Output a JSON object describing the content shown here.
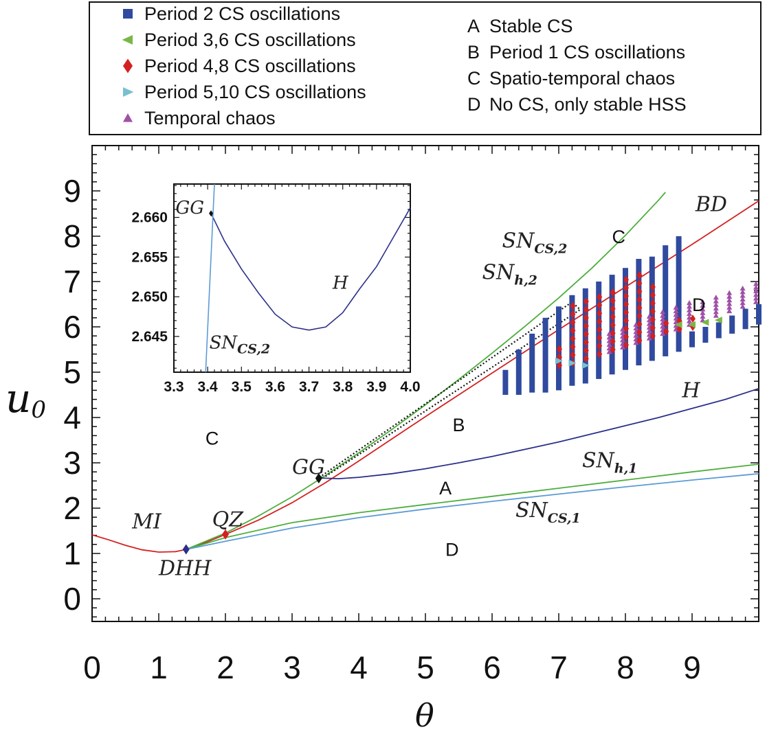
{
  "legend": {
    "markers": [
      {
        "label": "Period 2 CS oscillations",
        "symbol": "square",
        "color": "#2f4a9e"
      },
      {
        "label": "Period 3,6 CS oscillations",
        "symbol": "triangle-left",
        "color": "#7ab648"
      },
      {
        "label": "Period 4,8 CS oscillations",
        "symbol": "diamond",
        "color": "#d42020"
      },
      {
        "label": "Period 5,10 CS oscillations",
        "symbol": "triangle-right",
        "color": "#78c0d0"
      },
      {
        "label": "Temporal chaos",
        "symbol": "triangle-up",
        "color": "#a050a8"
      }
    ],
    "regions": [
      {
        "letter": "A",
        "label": "Stable CS"
      },
      {
        "letter": "B",
        "label": "Period 1 CS oscillations"
      },
      {
        "letter": "C",
        "label": "Spatio-temporal chaos"
      },
      {
        "letter": "D",
        "label": "No CS, only stable HSS"
      }
    ]
  },
  "chart_data": [
    {
      "type": "line",
      "role": "main",
      "xlabel": "θ",
      "ylabel": "u",
      "ylabel_sub": "0",
      "xlim": [
        0,
        10
      ],
      "ylim": [
        -0.5,
        10
      ],
      "xticks": [
        "0",
        "1",
        "2",
        "3",
        "4",
        "5",
        "6",
        "7",
        "8",
        "9"
      ],
      "yticks": [
        "0",
        "1",
        "2",
        "3",
        "4",
        "5",
        "6",
        "7",
        "8",
        "9"
      ],
      "colors": {
        "red": "#d42020",
        "green": "#4cae3c",
        "navy": "#2b2f8a",
        "blue": "#5b9bd5"
      },
      "series": [
        {
          "name": "MI/BD",
          "color": "red",
          "x": [
            0,
            0.25,
            0.5,
            0.75,
            1,
            1.25,
            1.41,
            1.7,
            2,
            2.5,
            3,
            3.5,
            4,
            4.5,
            5,
            5.5,
            6,
            6.5,
            7,
            7.5,
            8,
            8.5,
            9,
            9.5,
            10
          ],
          "y": [
            1.41,
            1.3,
            1.18,
            1.08,
            1.03,
            1.04,
            1.09,
            1.24,
            1.42,
            1.74,
            2.12,
            2.56,
            3.04,
            3.53,
            4.02,
            4.5,
            4.98,
            5.46,
            5.94,
            6.41,
            6.88,
            7.35,
            7.82,
            8.3,
            8.78
          ]
        },
        {
          "name": "SN_h,2",
          "color": "green",
          "x": [
            1.41,
            2,
            2.5,
            3,
            3.5,
            4,
            4.5,
            5,
            5.5,
            6,
            6.5,
            7,
            7.5,
            8,
            8.5,
            8.6
          ],
          "y": [
            1.09,
            1.45,
            1.83,
            2.25,
            2.72,
            3.22,
            3.74,
            4.28,
            4.84,
            5.42,
            6.02,
            6.64,
            7.3,
            8.02,
            8.8,
            8.97
          ]
        },
        {
          "name": "SN_CS,2",
          "color": "green",
          "x": [
            3.4,
            3.45
          ],
          "y": [
            2.66,
            2.7
          ]
        },
        {
          "name": "H",
          "color": "navy",
          "x": [
            3.4,
            3.5,
            3.7,
            4,
            4.5,
            5,
            5.5,
            6,
            6.5,
            7,
            7.5,
            8,
            8.5,
            9,
            9.5,
            10
          ],
          "y": [
            2.67,
            2.66,
            2.65,
            2.68,
            2.76,
            2.87,
            3.0,
            3.14,
            3.3,
            3.46,
            3.64,
            3.82,
            4.0,
            4.2,
            4.4,
            4.64
          ]
        },
        {
          "name": "SN_h,1",
          "color": "green",
          "x": [
            1.41,
            2,
            3,
            4,
            5,
            6,
            7,
            8,
            9,
            10
          ],
          "y": [
            1.09,
            1.35,
            1.68,
            1.9,
            2.08,
            2.26,
            2.44,
            2.62,
            2.8,
            2.97
          ]
        },
        {
          "name": "SN_CS,1",
          "color": "blue",
          "x": [
            1.41,
            2,
            3,
            4,
            5,
            6,
            7,
            8,
            9,
            10
          ],
          "y": [
            1.09,
            1.27,
            1.56,
            1.79,
            1.98,
            2.15,
            2.31,
            2.47,
            2.62,
            2.76
          ]
        }
      ],
      "points": [
        {
          "label": "DHH",
          "x": 1.41,
          "y": 1.09,
          "color": "#2b2f8a"
        },
        {
          "label": "QZ",
          "x": 2.0,
          "y": 1.42,
          "color": "#d42020"
        },
        {
          "label": "GG",
          "x": 3.4,
          "y": 2.66,
          "color": "#111111"
        }
      ],
      "annotations": [
        {
          "text": "MI",
          "x": 0.6,
          "y": 1.55
        },
        {
          "text": "DHH",
          "x": 1.0,
          "y": 0.52
        },
        {
          "text": "QZ",
          "x": 1.8,
          "y": 1.6
        },
        {
          "text": "GG",
          "x": 3.0,
          "y": 2.75
        },
        {
          "text": "BD",
          "x": 9.05,
          "y": 8.55
        },
        {
          "text": "H",
          "x": 8.85,
          "y": 4.45
        },
        {
          "text": "SN",
          "sub": "CS,2",
          "x": 6.15,
          "y": 7.75
        },
        {
          "text": "SN",
          "sub": "h,2",
          "x": 5.85,
          "y": 7.05
        },
        {
          "text": "SN",
          "sub": "h,1",
          "x": 7.35,
          "y": 2.9
        },
        {
          "text": "SN",
          "sub": "CS,1",
          "x": 6.35,
          "y": 1.8
        }
      ],
      "region_labels": [
        {
          "text": "C",
          "x": 1.8,
          "y": 3.4
        },
        {
          "text": "C",
          "x": 7.9,
          "y": 7.85
        },
        {
          "text": "B",
          "x": 5.5,
          "y": 3.7
        },
        {
          "text": "A",
          "x": 5.3,
          "y": 2.3
        },
        {
          "text": "D",
          "x": 5.4,
          "y": 0.95
        },
        {
          "text": "D",
          "x": 9.1,
          "y": 6.35
        }
      ],
      "zoom_box": {
        "corners": [
          [
            3.45,
            2.72
          ],
          [
            7.2,
            6.55
          ],
          [
            7.32,
            6.38
          ],
          [
            3.5,
            2.7
          ]
        ]
      },
      "oscillation_columns": {
        "period2": [
          {
            "x": 6.2,
            "y0": 4.5,
            "y1": 5.05
          },
          {
            "x": 6.4,
            "y0": 4.5,
            "y1": 5.5
          },
          {
            "x": 6.6,
            "y0": 4.55,
            "y1": 5.85
          },
          {
            "x": 6.8,
            "y0": 4.55,
            "y1": 6.2
          },
          {
            "x": 7.0,
            "y0": 4.6,
            "y1": 6.45
          },
          {
            "x": 7.2,
            "y0": 4.7,
            "y1": 6.7
          },
          {
            "x": 7.4,
            "y0": 4.75,
            "y1": 6.85
          },
          {
            "x": 7.6,
            "y0": 4.85,
            "y1": 7.0
          },
          {
            "x": 7.8,
            "y0": 4.95,
            "y1": 7.15
          },
          {
            "x": 8.0,
            "y0": 5.05,
            "y1": 7.3
          },
          {
            "x": 8.2,
            "y0": 5.15,
            "y1": 7.5
          },
          {
            "x": 8.4,
            "y0": 5.25,
            "y1": 7.55
          },
          {
            "x": 8.6,
            "y0": 5.35,
            "y1": 7.8
          },
          {
            "x": 8.8,
            "y0": 5.45,
            "y1": 8.0
          },
          {
            "x": 9.0,
            "y0": 5.55,
            "y1": 5.9
          },
          {
            "x": 9.2,
            "y0": 5.65,
            "y1": 6.0
          },
          {
            "x": 9.4,
            "y0": 5.75,
            "y1": 6.1
          },
          {
            "x": 9.6,
            "y0": 5.85,
            "y1": 6.25
          },
          {
            "x": 9.8,
            "y0": 5.95,
            "y1": 6.4
          },
          {
            "x": 10.0,
            "y0": 6.05,
            "y1": 6.5
          }
        ],
        "period48": [
          {
            "x": 7.0,
            "y0": 5.15,
            "y1": 5.6
          },
          {
            "x": 7.2,
            "y0": 5.2,
            "y1": 6.5
          },
          {
            "x": 7.4,
            "y0": 5.3,
            "y1": 6.6
          },
          {
            "x": 7.6,
            "y0": 5.4,
            "y1": 6.75
          },
          {
            "x": 7.8,
            "y0": 5.5,
            "y1": 6.9
          },
          {
            "x": 8.0,
            "y0": 5.6,
            "y1": 7.05
          },
          {
            "x": 8.2,
            "y0": 5.7,
            "y1": 7.2
          },
          {
            "x": 8.4,
            "y0": 5.8,
            "y1": 6.95
          },
          {
            "x": 8.6,
            "y0": 5.9,
            "y1": 6.1
          },
          {
            "x": 8.8,
            "y0": 5.95,
            "y1": 6.2
          },
          {
            "x": 9.0,
            "y0": 6.0,
            "y1": 6.3
          }
        ],
        "chaos": [
          {
            "x": 7.8,
            "y0": 5.45,
            "y1": 5.85
          },
          {
            "x": 8.0,
            "y0": 5.55,
            "y1": 6.0
          },
          {
            "x": 8.2,
            "y0": 5.65,
            "y1": 6.1
          },
          {
            "x": 8.4,
            "y0": 5.75,
            "y1": 6.25
          },
          {
            "x": 8.6,
            "y0": 5.85,
            "y1": 6.4
          },
          {
            "x": 8.8,
            "y0": 5.95,
            "y1": 6.5
          },
          {
            "x": 9.0,
            "y0": 6.05,
            "y1": 6.55
          },
          {
            "x": 9.2,
            "y0": 6.15,
            "y1": 6.6
          },
          {
            "x": 9.4,
            "y0": 6.25,
            "y1": 6.7
          },
          {
            "x": 9.6,
            "y0": 6.35,
            "y1": 6.8
          },
          {
            "x": 9.8,
            "y0": 6.45,
            "y1": 6.9
          },
          {
            "x": 10.0,
            "y0": 6.55,
            "y1": 6.95
          }
        ],
        "period36": [
          {
            "x": 8.8,
            "y": 6.05
          },
          {
            "x": 9.0,
            "y": 6.05
          },
          {
            "x": 9.2,
            "y": 6.1
          },
          {
            "x": 9.4,
            "y": 6.15
          }
        ],
        "period510": [
          {
            "x": 7.0,
            "y": 5.25
          },
          {
            "x": 7.2,
            "y": 5.2
          },
          {
            "x": 7.4,
            "y": 5.15
          }
        ]
      }
    },
    {
      "type": "line",
      "role": "inset",
      "xlim": [
        3.3,
        4.0
      ],
      "ylim": [
        2.6405,
        2.6642
      ],
      "xticks": [
        "3.3",
        "3.4",
        "3.5",
        "3.6",
        "3.7",
        "3.8",
        "3.9",
        "4.0"
      ],
      "yticks": [
        "2.660",
        "2.655",
        "2.650",
        "2.645"
      ],
      "series": [
        {
          "name": "H",
          "color": "navy",
          "x": [
            3.41,
            3.45,
            3.5,
            3.55,
            3.6,
            3.65,
            3.7,
            3.75,
            3.8,
            3.85,
            3.9,
            3.95,
            4.0
          ],
          "y": [
            2.6605,
            2.657,
            2.6535,
            2.6505,
            2.6478,
            2.6462,
            2.6458,
            2.6462,
            2.648,
            2.651,
            2.6538,
            2.6575,
            2.6612
          ]
        },
        {
          "name": "SN_CS,2",
          "color": "blue",
          "x": [
            3.394,
            3.42
          ],
          "y": [
            2.6405,
            2.6642
          ]
        }
      ],
      "points": [
        {
          "label": "GG",
          "x": 3.41,
          "y": 2.6605
        }
      ],
      "annotations": [
        {
          "text": "GG",
          "x": 3.305,
          "y": 2.6605
        },
        {
          "text": "H",
          "x": 3.77,
          "y": 2.651
        },
        {
          "text": "SN",
          "sub": "CS,2",
          "x": 3.405,
          "y": 2.6435
        }
      ]
    }
  ]
}
